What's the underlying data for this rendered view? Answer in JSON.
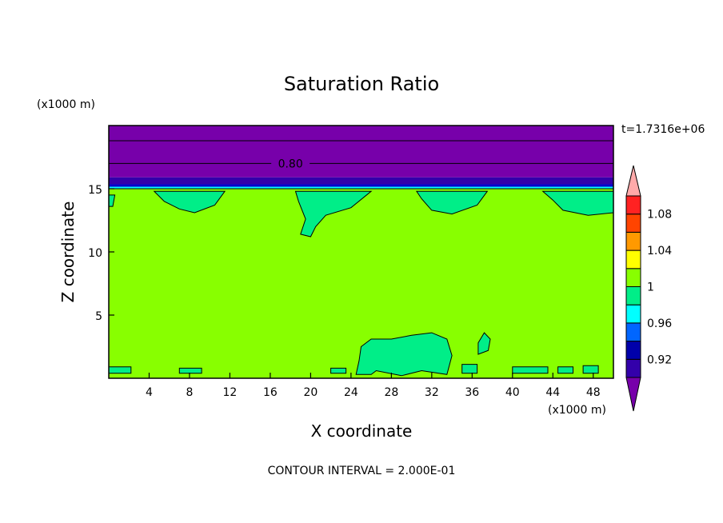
{
  "chart_data": {
    "type": "contour",
    "title": "Saturation Ratio",
    "xlabel": "X coordinate",
    "ylabel": "Z coordinate",
    "x_unit": "(x1000 m)",
    "y_unit": "(x1000 m)",
    "time_label": "t=1.7316e+06",
    "footer": "CONTOUR INTERVAL = 2.000E-01",
    "xlim": [
      0,
      50
    ],
    "ylim": [
      0,
      20
    ],
    "x_ticks": [
      4,
      8,
      12,
      16,
      20,
      24,
      28,
      32,
      36,
      40,
      44,
      48
    ],
    "y_ticks": [
      5,
      10,
      15
    ],
    "x_tick_labels": [
      "4",
      "8",
      "12",
      "16",
      "20",
      "24",
      "28",
      "32",
      "36",
      "40",
      "44",
      "48"
    ],
    "y_tick_labels": [
      "5",
      "10",
      "15"
    ],
    "contour_lines": [
      {
        "level": "0.80",
        "z": 17.0,
        "labeled": true
      },
      {
        "level": "",
        "z": 18.8,
        "labeled": false
      }
    ],
    "layers": [
      {
        "z_from": 15.9,
        "z_to": 20.0,
        "color": "#7700aa"
      },
      {
        "z_from": 15.35,
        "z_to": 15.9,
        "color": "#3300aa"
      },
      {
        "z_from": 15.15,
        "z_to": 15.35,
        "color": "#0000cc"
      },
      {
        "z_from": 15.0,
        "z_to": 15.15,
        "color": "#00ffff"
      },
      {
        "z_from": 0.0,
        "z_to": 15.0,
        "color": "#88ff00"
      }
    ],
    "patches": [
      {
        "color": "#00ee88",
        "points": [
          [
            4.5,
            14.8
          ],
          [
            11.5,
            14.8
          ],
          [
            10.5,
            13.7
          ],
          [
            8.5,
            13.1
          ],
          [
            7.0,
            13.4
          ],
          [
            5.5,
            14.0
          ]
        ]
      },
      {
        "color": "#00ee88",
        "points": [
          [
            18.5,
            14.8
          ],
          [
            26.0,
            14.8
          ],
          [
            24.0,
            13.5
          ],
          [
            21.5,
            12.9
          ],
          [
            20.5,
            12.0
          ],
          [
            20.0,
            11.2
          ],
          [
            19.0,
            11.4
          ],
          [
            19.5,
            12.6
          ],
          [
            18.8,
            14.0
          ]
        ]
      },
      {
        "color": "#00ee88",
        "points": [
          [
            30.5,
            14.8
          ],
          [
            37.5,
            14.8
          ],
          [
            36.5,
            13.7
          ],
          [
            34.0,
            13.0
          ],
          [
            32.0,
            13.3
          ],
          [
            31.0,
            14.2
          ]
        ]
      },
      {
        "color": "#00ee88",
        "points": [
          [
            43.0,
            14.8
          ],
          [
            50.0,
            14.8
          ],
          [
            50.0,
            13.1
          ],
          [
            47.5,
            12.9
          ],
          [
            45.0,
            13.3
          ],
          [
            44.0,
            14.1
          ]
        ]
      },
      {
        "color": "#00ee88",
        "points": [
          [
            0.0,
            14.5
          ],
          [
            0.6,
            14.5
          ],
          [
            0.4,
            13.6
          ],
          [
            0.0,
            13.6
          ]
        ]
      },
      {
        "color": "#00ee88",
        "points": [
          [
            24.5,
            0.3
          ],
          [
            26.0,
            0.3
          ],
          [
            26.5,
            0.6
          ],
          [
            29.0,
            0.2
          ],
          [
            31.0,
            0.6
          ],
          [
            33.5,
            0.3
          ],
          [
            34.0,
            1.8
          ],
          [
            33.5,
            3.1
          ],
          [
            32.0,
            3.6
          ],
          [
            30.0,
            3.4
          ],
          [
            28.0,
            3.1
          ],
          [
            26.0,
            3.1
          ],
          [
            25.0,
            2.5
          ],
          [
            24.8,
            1.4
          ]
        ]
      },
      {
        "color": "#00ee88",
        "points": [
          [
            36.6,
            1.9
          ],
          [
            37.6,
            2.2
          ],
          [
            37.8,
            3.1
          ],
          [
            37.2,
            3.6
          ],
          [
            36.6,
            2.8
          ]
        ]
      },
      {
        "color": "#00ee88",
        "points": [
          [
            0.0,
            0.4
          ],
          [
            2.2,
            0.4
          ],
          [
            2.2,
            0.9
          ],
          [
            0.0,
            0.9
          ]
        ]
      },
      {
        "color": "#00ee88",
        "points": [
          [
            7.0,
            0.4
          ],
          [
            9.2,
            0.4
          ],
          [
            9.2,
            0.8
          ],
          [
            7.0,
            0.8
          ]
        ]
      },
      {
        "color": "#00ee88",
        "points": [
          [
            22.0,
            0.4
          ],
          [
            23.5,
            0.4
          ],
          [
            23.5,
            0.8
          ],
          [
            22.0,
            0.8
          ]
        ]
      },
      {
        "color": "#00ee88",
        "points": [
          [
            35.0,
            0.4
          ],
          [
            36.5,
            0.4
          ],
          [
            36.5,
            1.1
          ],
          [
            35.0,
            1.1
          ]
        ]
      },
      {
        "color": "#00ee88",
        "points": [
          [
            40.0,
            0.4
          ],
          [
            43.5,
            0.4
          ],
          [
            43.5,
            0.9
          ],
          [
            40.0,
            0.9
          ]
        ]
      },
      {
        "color": "#00ee88",
        "points": [
          [
            44.5,
            0.4
          ],
          [
            46.0,
            0.4
          ],
          [
            46.0,
            0.9
          ],
          [
            44.5,
            0.9
          ]
        ]
      },
      {
        "color": "#00ee88",
        "points": [
          [
            47.0,
            0.4
          ],
          [
            48.5,
            0.4
          ],
          [
            48.5,
            1.0
          ],
          [
            47.0,
            1.0
          ]
        ]
      }
    ],
    "colorbar": {
      "labels": [
        "1.08",
        "1.04",
        "1",
        "0.96",
        "0.92"
      ],
      "colors": [
        "#7700aa",
        "#3300aa",
        "#0000aa",
        "#0066ff",
        "#00ffff",
        "#00ee88",
        "#88ff00",
        "#ffff00",
        "#ff9900",
        "#ff4400",
        "#ff2222",
        "#ffaaaa"
      ],
      "label_after_segment": [
        9,
        7,
        5,
        3,
        1
      ]
    }
  }
}
